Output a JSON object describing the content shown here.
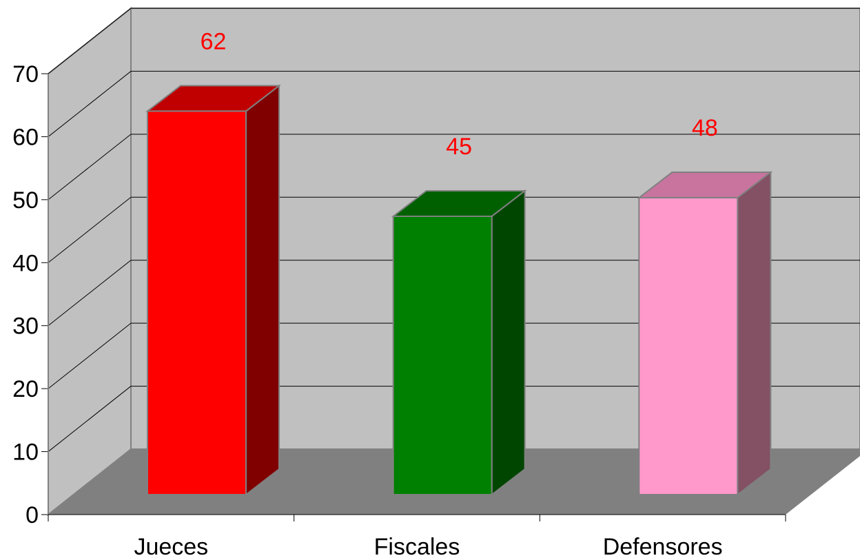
{
  "chart_data": {
    "type": "bar",
    "categories": [
      "Jueces",
      "Fiscales",
      "Defensores"
    ],
    "values": [
      62,
      45,
      48
    ],
    "data_labels": [
      "62",
      "45",
      "48"
    ],
    "ylim": [
      0,
      70
    ],
    "yticks": [
      "0",
      "10",
      "20",
      "30",
      "40",
      "50",
      "60",
      "70"
    ],
    "grid": true,
    "legend": "none",
    "colors": {
      "bars": [
        {
          "front": "#ff0000",
          "side": "#800000",
          "top": "#c00000"
        },
        {
          "front": "#008000",
          "side": "#004600",
          "top": "#006000"
        },
        {
          "front": "#ff99cc",
          "side": "#835064",
          "top": "#c8749f"
        }
      ],
      "back_wall": "#c0c0c0",
      "side_wall": "#c0c0c0",
      "floor": "#808080",
      "grid": "#000000",
      "data_label": "#ff0000"
    }
  }
}
